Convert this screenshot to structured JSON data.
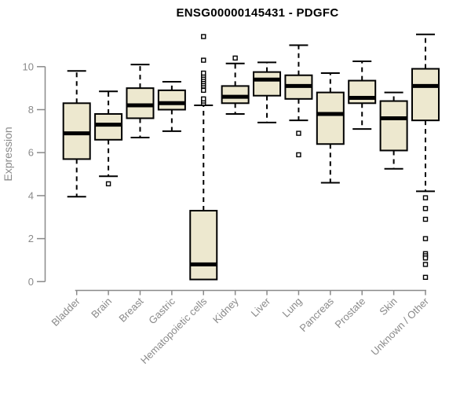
{
  "chart_data": {
    "type": "boxplot",
    "title": "ENSG00000145431 - PDGFC",
    "xlabel": "",
    "ylabel": "Expression",
    "ylim": [
      0,
      11.7
    ],
    "yticks": [
      0,
      2,
      4,
      6,
      8,
      10
    ],
    "grid": "off",
    "legend": "none",
    "categories": [
      "Bladder",
      "Brain",
      "Breast",
      "Gastric",
      "Hematopoietic cells",
      "Kidney",
      "Liver",
      "Lung",
      "Pancreas",
      "Prostate",
      "Skin",
      "Unknown / Other"
    ],
    "series": [
      {
        "name": "Bladder",
        "whisker_low": 3.95,
        "q1": 5.7,
        "median": 6.9,
        "q3": 8.3,
        "whisker_high": 9.8,
        "outliers": []
      },
      {
        "name": "Brain",
        "whisker_low": 4.9,
        "q1": 6.6,
        "median": 7.3,
        "q3": 7.8,
        "whisker_high": 8.85,
        "outliers": [
          4.55
        ]
      },
      {
        "name": "Breast",
        "whisker_low": 6.7,
        "q1": 7.6,
        "median": 8.2,
        "q3": 9.0,
        "whisker_high": 10.1,
        "outliers": []
      },
      {
        "name": "Gastric",
        "whisker_low": 7.0,
        "q1": 8.0,
        "median": 8.3,
        "q3": 8.9,
        "whisker_high": 9.3,
        "outliers": []
      },
      {
        "name": "Hematopoietic cells",
        "whisker_low": 0.1,
        "q1": 0.1,
        "median": 0.8,
        "q3": 3.3,
        "whisker_high": 8.2,
        "outliers": [
          8.3,
          8.4,
          8.5,
          8.9,
          9.1,
          9.2,
          9.3,
          9.4,
          9.5,
          9.6,
          9.7,
          10.3,
          11.4
        ]
      },
      {
        "name": "Kidney",
        "whisker_low": 7.8,
        "q1": 8.3,
        "median": 8.6,
        "q3": 9.1,
        "whisker_high": 10.15,
        "outliers": [
          10.4
        ]
      },
      {
        "name": "Liver",
        "whisker_low": 7.4,
        "q1": 8.65,
        "median": 9.4,
        "q3": 9.75,
        "whisker_high": 10.2,
        "outliers": []
      },
      {
        "name": "Lung",
        "whisker_low": 7.5,
        "q1": 8.5,
        "median": 9.1,
        "q3": 9.6,
        "whisker_high": 11.0,
        "outliers": [
          6.9,
          5.9
        ]
      },
      {
        "name": "Pancreas",
        "whisker_low": 4.6,
        "q1": 6.4,
        "median": 7.8,
        "q3": 8.8,
        "whisker_high": 9.7,
        "outliers": []
      },
      {
        "name": "Prostate",
        "whisker_low": 7.1,
        "q1": 8.3,
        "median": 8.55,
        "q3": 9.35,
        "whisker_high": 10.25,
        "outliers": []
      },
      {
        "name": "Skin",
        "whisker_low": 5.25,
        "q1": 6.1,
        "median": 7.6,
        "q3": 8.4,
        "whisker_high": 8.8,
        "outliers": []
      },
      {
        "name": "Unknown / Other",
        "whisker_low": 4.2,
        "q1": 7.5,
        "median": 9.1,
        "q3": 9.9,
        "whisker_high": 11.5,
        "outliers": [
          3.9,
          3.4,
          2.9,
          2.0,
          1.3,
          1.2,
          1.1,
          0.8,
          0.2
        ]
      }
    ],
    "colors": {
      "box_fill": "#ede8cf",
      "box_stroke": "#000000",
      "median": "#000000",
      "whisker": "#000000",
      "outlier_stroke": "#000000",
      "outlier_fill": "#ffffff",
      "axis": "#8a8a8a",
      "title": "#000000",
      "background": "#ffffff"
    }
  }
}
